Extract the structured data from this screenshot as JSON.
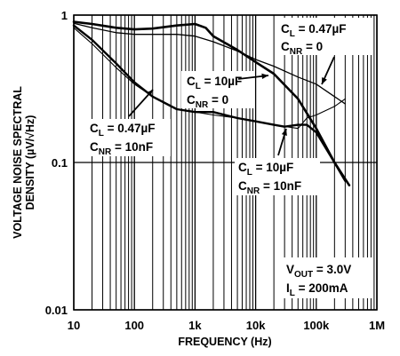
{
  "chart_data": {
    "type": "line",
    "title": "",
    "xlabel": "FREQUENCY (Hz)",
    "ylabel_line1": "VOLTAGE NOISE SPECTRAL",
    "ylabel_line2": "DENSITY (µV/√Hz)",
    "x_scale": "log",
    "y_scale": "log",
    "xlim": [
      10,
      1000000
    ],
    "ylim": [
      0.01,
      1
    ],
    "grid": true,
    "x_ticks": [
      {
        "value": 10,
        "label": "10"
      },
      {
        "value": 100,
        "label": "100"
      },
      {
        "value": 1000,
        "label": "1k"
      },
      {
        "value": 10000,
        "label": "10k"
      },
      {
        "value": 100000,
        "label": "100k"
      },
      {
        "value": 1000000,
        "label": "1M"
      }
    ],
    "y_ticks": [
      {
        "value": 1,
        "label": "1"
      },
      {
        "value": 0.1,
        "label": "0.1"
      },
      {
        "value": 0.01,
        "label": "0.01"
      }
    ],
    "conditions": {
      "vout": {
        "main": "V",
        "sub": "OUT",
        "rest": " = 3.0V"
      },
      "il": {
        "main": "I",
        "sub": "L",
        "rest": " = 200mA"
      }
    },
    "series": [
      {
        "label_cl": {
          "main": "C",
          "sub": "L",
          "rest": " = 0.47µF"
        },
        "label_cnr": {
          "main": "C",
          "sub": "NR",
          "rest": " = 0"
        },
        "stroke": 1.3,
        "x": [
          10,
          20,
          50,
          100,
          200,
          500,
          1000,
          2000,
          5000,
          10000,
          20000,
          50000,
          100000,
          200000,
          300000
        ],
        "y": [
          0.88,
          0.82,
          0.76,
          0.74,
          0.74,
          0.74,
          0.72,
          0.66,
          0.57,
          0.5,
          0.45,
          0.38,
          0.34,
          0.28,
          0.25
        ]
      },
      {
        "label_cl": {
          "main": "C",
          "sub": "L",
          "rest": " = 10µF"
        },
        "label_cnr": {
          "main": "C",
          "sub": "NR",
          "rest": " = 0"
        },
        "stroke": 2.6,
        "x": [
          10,
          20,
          50,
          100,
          200,
          500,
          1000,
          1500,
          2000,
          5000,
          10000,
          20000,
          50000,
          100000,
          200000,
          350000
        ],
        "y": [
          0.9,
          0.87,
          0.82,
          0.8,
          0.81,
          0.85,
          0.87,
          0.82,
          0.72,
          0.58,
          0.48,
          0.4,
          0.27,
          0.17,
          0.1,
          0.07
        ]
      },
      {
        "label_cl": {
          "main": "C",
          "sub": "L",
          "rest": " = 0.47µF"
        },
        "label_cnr": {
          "main": "C",
          "sub": "NR",
          "rest": " = 10nF"
        },
        "stroke": 1.1,
        "x": [
          10,
          20,
          50,
          100,
          200,
          500,
          1000,
          2000,
          5000,
          10000,
          20000,
          50000,
          70000,
          100000,
          200000,
          300000
        ],
        "y": [
          0.82,
          0.64,
          0.44,
          0.34,
          0.28,
          0.23,
          0.22,
          0.21,
          0.2,
          0.19,
          0.18,
          0.17,
          0.2,
          0.21,
          0.24,
          0.27
        ]
      },
      {
        "label_cl": {
          "main": "C",
          "sub": "L",
          "rest": " = 10µF"
        },
        "label_cnr": {
          "main": "C",
          "sub": "NR",
          "rest": " = 10nF"
        },
        "stroke": 2.4,
        "x": [
          10,
          20,
          50,
          100,
          200,
          500,
          1000,
          2000,
          5000,
          10000,
          20000,
          30000,
          50000,
          70000,
          100000,
          200000,
          300000
        ],
        "y": [
          0.85,
          0.68,
          0.47,
          0.35,
          0.28,
          0.23,
          0.22,
          0.22,
          0.2,
          0.19,
          0.18,
          0.175,
          0.18,
          0.18,
          0.16,
          0.1,
          0.075
        ]
      }
    ]
  }
}
